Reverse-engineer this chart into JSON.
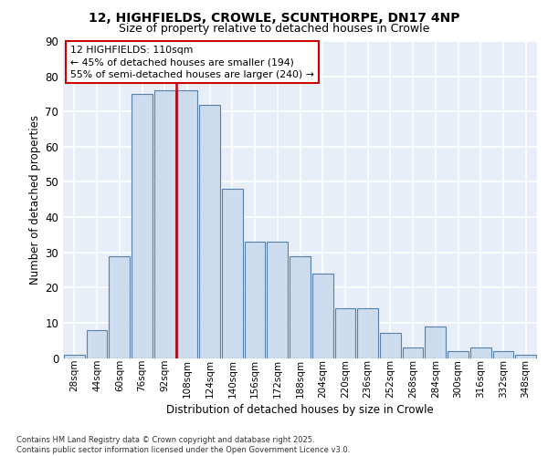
{
  "title_line1": "12, HIGHFIELDS, CROWLE, SCUNTHORPE, DN17 4NP",
  "title_line2": "Size of property relative to detached houses in Crowle",
  "xlabel": "Distribution of detached houses by size in Crowle",
  "ylabel": "Number of detached properties",
  "bar_labels": [
    "28sqm",
    "44sqm",
    "60sqm",
    "76sqm",
    "92sqm",
    "108sqm",
    "124sqm",
    "140sqm",
    "156sqm",
    "172sqm",
    "188sqm",
    "204sqm",
    "220sqm",
    "236sqm",
    "252sqm",
    "268sqm",
    "284sqm",
    "300sqm",
    "316sqm",
    "332sqm",
    "348sqm"
  ],
  "bar_heights": [
    1,
    8,
    29,
    75,
    76,
    76,
    72,
    48,
    33,
    33,
    29,
    24,
    14,
    14,
    7,
    3,
    9,
    2,
    3,
    2,
    1
  ],
  "bar_color": "#ccdcee",
  "bar_edge_color": "#5580aa",
  "background_color": "#e8eef8",
  "grid_color": "#ffffff",
  "vline_index": 5,
  "vline_color": "#cc0000",
  "annotation_text": "12 HIGHFIELDS: 110sqm\n← 45% of detached houses are smaller (194)\n55% of semi-detached houses are larger (240) →",
  "footer_text": "Contains HM Land Registry data © Crown copyright and database right 2025.\nContains public sector information licensed under the Open Government Licence v3.0.",
  "ylim": [
    0,
    90
  ],
  "yticks": [
    0,
    10,
    20,
    30,
    40,
    50,
    60,
    70,
    80,
    90
  ]
}
